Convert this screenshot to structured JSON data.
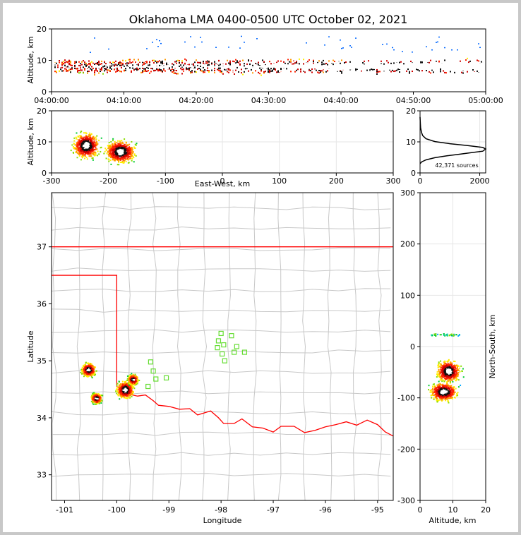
{
  "chart_data": [
    {
      "type": "heatmap",
      "name": "time_altitude",
      "title": "Oklahoma LMA 0400-0500 UTC October 02, 2021",
      "xlabel": "",
      "ylabel": "Altitude, km",
      "x_ticks": [
        "04:00:00",
        "04:10:00",
        "04:20:00",
        "04:30:00",
        "04:40:00",
        "04:50:00",
        "05:00:00"
      ],
      "x_range_minutes": [
        0,
        60
      ],
      "y_ticks": [
        0,
        10,
        20
      ],
      "ylim": [
        0,
        20
      ],
      "altitude_band_km": [
        4,
        12
      ],
      "peak_altitude_km": 8
    },
    {
      "type": "heatmap",
      "name": "eastwest_altitude",
      "xlabel": "East-West, km",
      "ylabel": "Altitude, km",
      "x_ticks": [
        -300,
        -200,
        -100,
        0,
        100,
        200,
        300
      ],
      "xlim": [
        -300,
        300
      ],
      "y_ticks": [
        0,
        10,
        20
      ],
      "ylim": [
        0,
        20
      ],
      "cells": [
        {
          "x": -240,
          "y": 9,
          "sx": 14,
          "sy": 2.5
        },
        {
          "x": -180,
          "y": 7,
          "sx": 16,
          "sy": 2.2
        }
      ]
    },
    {
      "type": "line",
      "name": "altitude_histogram",
      "x_ticks": [
        0,
        2000
      ],
      "xlim": [
        0,
        2200
      ],
      "y_ticks": [
        0,
        10,
        20
      ],
      "ylim": [
        0,
        20
      ],
      "annotation": "42,371 sources",
      "points": [
        [
          0,
          3
        ],
        [
          60,
          3.6
        ],
        [
          200,
          4.2
        ],
        [
          500,
          4.9
        ],
        [
          900,
          5.5
        ],
        [
          1300,
          6
        ],
        [
          1700,
          6.5
        ],
        [
          2100,
          7
        ],
        [
          2200,
          7.7
        ],
        [
          2100,
          8.2
        ],
        [
          1600,
          8.8
        ],
        [
          1000,
          9.4
        ],
        [
          500,
          10.1
        ],
        [
          200,
          11
        ],
        [
          90,
          12
        ],
        [
          50,
          13
        ],
        [
          20,
          14.5
        ],
        [
          10,
          16
        ],
        [
          0,
          18
        ]
      ]
    },
    {
      "type": "heatmap",
      "name": "plan_view_map",
      "xlabel": "Longitude",
      "ylabel": "Latitude",
      "x_ticks": [
        -101,
        -100,
        -99,
        -98,
        -97,
        -96,
        -95
      ],
      "xlim": [
        -101.25,
        -94.7
      ],
      "y_ticks": [
        33,
        34,
        35,
        36,
        37
      ],
      "ylim": [
        32.55,
        37.95
      ],
      "cells": [
        {
          "lon": -100.55,
          "lat": 34.85,
          "s": 0.08
        },
        {
          "lon": -100.4,
          "lat": 34.35,
          "s": 0.06
        },
        {
          "lon": -99.85,
          "lat": 34.5,
          "s": 0.1
        },
        {
          "lon": -99.7,
          "lat": 34.68,
          "s": 0.06
        }
      ],
      "stations": [
        [
          -99.35,
          34.98
        ],
        [
          -99.3,
          34.82
        ],
        [
          -99.25,
          34.68
        ],
        [
          -99.05,
          34.7
        ],
        [
          -99.4,
          34.55
        ],
        [
          -98.0,
          35.48
        ],
        [
          -97.8,
          35.44
        ],
        [
          -98.05,
          35.35
        ],
        [
          -97.95,
          35.28
        ],
        [
          -98.07,
          35.23
        ],
        [
          -97.7,
          35.25
        ],
        [
          -97.75,
          35.15
        ],
        [
          -97.55,
          35.15
        ],
        [
          -97.98,
          35.12
        ],
        [
          -97.93,
          35.0
        ]
      ]
    },
    {
      "type": "heatmap",
      "name": "altitude_northsouth",
      "xlabel": "Altitude, km",
      "ylabel": "North-South, km",
      "x_ticks": [
        0,
        10,
        20
      ],
      "xlim": [
        0,
        20
      ],
      "y_ticks": [
        -300,
        -200,
        -100,
        0,
        100,
        200,
        300
      ],
      "ylim": [
        -300,
        300
      ],
      "cells": [
        {
          "x": 8.5,
          "y": -47,
          "sx": 2.2,
          "sy": 13
        },
        {
          "x": 7,
          "y": -87,
          "sx": 2.5,
          "sy": 11
        }
      ]
    }
  ],
  "colors": {
    "oklahoma_border": "#ff0000",
    "counties": "#c8c8c8",
    "stations": "#66dd33"
  }
}
